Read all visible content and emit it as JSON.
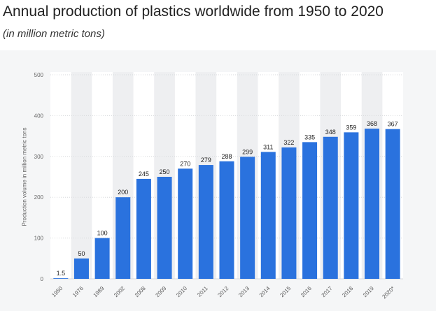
{
  "chart_data": {
    "type": "bar",
    "title": "Annual production of plastics worldwide from 1950 to 2020",
    "subtitle": "(in million metric tons)",
    "xlabel": "",
    "ylabel": "Production volume in million metric tons",
    "categories": [
      "1950",
      "1976",
      "1989",
      "2002",
      "2008",
      "2009",
      "2010",
      "2011",
      "2012",
      "2013",
      "2014",
      "2015",
      "2016",
      "2017",
      "2018",
      "2019",
      "2020*"
    ],
    "values": [
      1.5,
      50,
      100,
      200,
      245,
      250,
      270,
      279,
      288,
      299,
      311,
      322,
      335,
      348,
      359,
      368,
      367
    ],
    "value_labels": [
      "1.5",
      "50",
      "100",
      "200",
      "245",
      "250",
      "270",
      "279",
      "288",
      "299",
      "311",
      "322",
      "335",
      "348",
      "359",
      "368",
      "367"
    ],
    "yticks": [
      0,
      100,
      200,
      300,
      400,
      500
    ],
    "ylim": [
      0,
      500
    ],
    "grid": true,
    "legend": "none",
    "colors": {
      "bar": "#2a72de",
      "alt_band": "#eeeff1",
      "grid": "#d7d9dc"
    }
  }
}
